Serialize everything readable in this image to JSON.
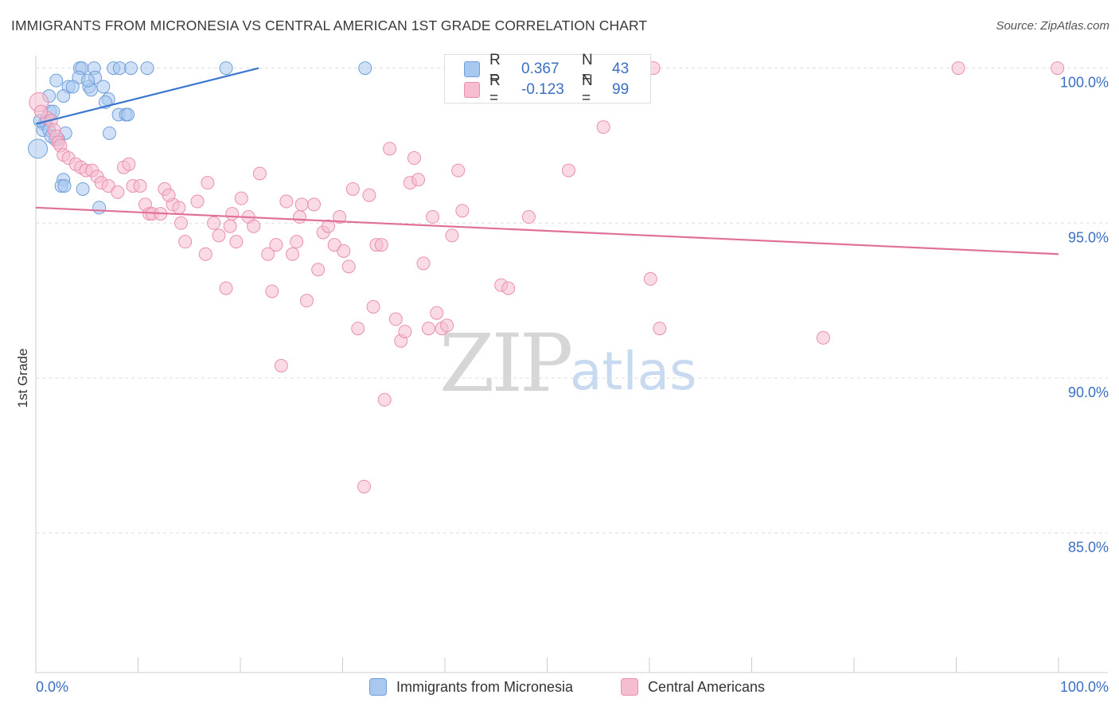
{
  "title": "IMMIGRANTS FROM MICRONESIA VS CENTRAL AMERICAN 1ST GRADE CORRELATION CHART",
  "source": "Source: ZipAtlas.com",
  "watermark": {
    "zip": "ZIP",
    "atlas": "atlas"
  },
  "colors": {
    "blue_fill": "#a9c8f0",
    "blue_stroke": "#6f9fd8",
    "blue_line": "#3a78d0",
    "pink_fill": "#f6bdd0",
    "pink_stroke": "#e98fb0",
    "pink_line": "#e0709a",
    "grid": "#dddddd",
    "tick_text": "#3a6fc4"
  },
  "stats": {
    "blue": {
      "r_label": "R =",
      "r_value": "0.367",
      "n_label": "N =",
      "n_value": "43"
    },
    "pink": {
      "r_label": "R =",
      "r_value": "-0.123",
      "n_label": "N =",
      "n_value": "99"
    }
  },
  "legend": {
    "series1": "Immigrants from Micronesia",
    "series2": "Central Americans"
  },
  "chart_data": {
    "type": "scatter",
    "title": "IMMIGRANTS FROM MICRONESIA VS CENTRAL AMERICAN 1ST GRADE CORRELATION CHART",
    "xlabel": "",
    "ylabel": "1st Grade",
    "xlim": [
      0,
      100
    ],
    "ylim": [
      80.5,
      100.4
    ],
    "x_tick_labels": [
      "0.0%",
      "100.0%"
    ],
    "y_ticks": [
      100,
      95,
      90,
      85
    ],
    "y_tick_labels": [
      "100.0%",
      "95.0%",
      "90.0%",
      "85.0%"
    ],
    "grid": "horizontal dashed",
    "legend_position": "bottom",
    "series": [
      {
        "name": "Immigrants from Micronesia",
        "color": "#6f9fd8",
        "trend": {
          "x": [
            0,
            21.8
          ],
          "y": [
            98.2,
            100.0
          ]
        },
        "points": [
          [
            4.3,
            100
          ],
          [
            4.5,
            100
          ],
          [
            5.7,
            100
          ],
          [
            7.6,
            100
          ],
          [
            8.2,
            100
          ],
          [
            9.3,
            100
          ],
          [
            10.9,
            100
          ],
          [
            18.6,
            100
          ],
          [
            32.2,
            100
          ],
          [
            2.0,
            99.6
          ],
          [
            4.2,
            99.7
          ],
          [
            5.8,
            99.7
          ],
          [
            3.2,
            99.4
          ],
          [
            3.6,
            99.4
          ],
          [
            5.2,
            99.4
          ],
          [
            5.4,
            99.3
          ],
          [
            6.6,
            99.4
          ],
          [
            1.3,
            99.1
          ],
          [
            2.7,
            99.1
          ],
          [
            7.1,
            99.0
          ],
          [
            6.8,
            98.9
          ],
          [
            1.4,
            98.6
          ],
          [
            1.7,
            98.6
          ],
          [
            8.1,
            98.5
          ],
          [
            8.8,
            98.5
          ],
          [
            9.0,
            98.5
          ],
          [
            0.8,
            98.2
          ],
          [
            1.0,
            98.2
          ],
          [
            0.7,
            98.0
          ],
          [
            1.3,
            98.0
          ],
          [
            2.9,
            97.9
          ],
          [
            7.2,
            97.9
          ],
          [
            1.9,
            97.7
          ],
          [
            2.2,
            97.7
          ],
          [
            0.2,
            97.4
          ],
          [
            2.7,
            96.4
          ],
          [
            2.5,
            96.2
          ],
          [
            2.8,
            96.2
          ],
          [
            4.6,
            96.1
          ],
          [
            6.2,
            95.5
          ],
          [
            0.4,
            98.3
          ],
          [
            1.5,
            97.8
          ],
          [
            5.1,
            99.6
          ]
        ]
      },
      {
        "name": "Central Americans",
        "color": "#e98fb0",
        "trend": {
          "x": [
            0,
            100
          ],
          "y": [
            95.5,
            94.0
          ]
        },
        "points": [
          [
            49.4,
            100
          ],
          [
            60.4,
            100
          ],
          [
            90.2,
            100
          ],
          [
            99.9,
            100
          ],
          [
            0.3,
            98.9
          ],
          [
            1.1,
            98.4
          ],
          [
            1.5,
            98.3
          ],
          [
            1.8,
            98.0
          ],
          [
            2.0,
            97.8
          ],
          [
            2.2,
            97.6
          ],
          [
            2.4,
            97.5
          ],
          [
            2.7,
            97.2
          ],
          [
            3.2,
            97.1
          ],
          [
            3.9,
            96.9
          ],
          [
            4.4,
            96.8
          ],
          [
            4.9,
            96.7
          ],
          [
            5.5,
            96.7
          ],
          [
            6.0,
            96.5
          ],
          [
            6.4,
            96.3
          ],
          [
            7.1,
            96.2
          ],
          [
            8.0,
            96.0
          ],
          [
            8.6,
            96.8
          ],
          [
            9.1,
            96.9
          ],
          [
            9.5,
            96.2
          ],
          [
            10.2,
            96.2
          ],
          [
            10.7,
            95.6
          ],
          [
            11.1,
            95.3
          ],
          [
            11.4,
            95.3
          ],
          [
            12.2,
            95.3
          ],
          [
            12.6,
            96.1
          ],
          [
            13.4,
            95.6
          ],
          [
            13.0,
            95.9
          ],
          [
            14.0,
            95.5
          ],
          [
            14.2,
            95.0
          ],
          [
            14.6,
            94.4
          ],
          [
            15.8,
            95.7
          ],
          [
            16.6,
            94.0
          ],
          [
            16.8,
            96.3
          ],
          [
            17.4,
            95.0
          ],
          [
            17.9,
            94.6
          ],
          [
            18.6,
            92.9
          ],
          [
            19.0,
            94.9
          ],
          [
            19.2,
            95.3
          ],
          [
            19.6,
            94.4
          ],
          [
            20.1,
            95.8
          ],
          [
            20.8,
            95.2
          ],
          [
            21.3,
            94.9
          ],
          [
            21.9,
            96.6
          ],
          [
            22.7,
            94.0
          ],
          [
            23.1,
            92.8
          ],
          [
            23.5,
            94.3
          ],
          [
            24.0,
            90.4
          ],
          [
            24.5,
            95.7
          ],
          [
            25.1,
            94.0
          ],
          [
            25.5,
            94.4
          ],
          [
            25.8,
            95.2
          ],
          [
            26.0,
            95.6
          ],
          [
            26.5,
            92.5
          ],
          [
            27.2,
            95.6
          ],
          [
            27.6,
            93.5
          ],
          [
            28.1,
            94.7
          ],
          [
            28.6,
            94.9
          ],
          [
            29.2,
            94.3
          ],
          [
            29.7,
            95.2
          ],
          [
            30.1,
            94.1
          ],
          [
            30.6,
            93.6
          ],
          [
            31.0,
            96.1
          ],
          [
            31.5,
            91.6
          ],
          [
            32.1,
            86.5
          ],
          [
            32.6,
            95.9
          ],
          [
            33.0,
            92.3
          ],
          [
            33.3,
            94.3
          ],
          [
            33.8,
            94.3
          ],
          [
            34.1,
            89.3
          ],
          [
            34.6,
            97.4
          ],
          [
            35.2,
            91.9
          ],
          [
            35.7,
            91.2
          ],
          [
            36.1,
            91.5
          ],
          [
            36.6,
            96.3
          ],
          [
            37.0,
            97.1
          ],
          [
            37.4,
            96.4
          ],
          [
            37.9,
            93.7
          ],
          [
            38.4,
            91.6
          ],
          [
            38.8,
            95.2
          ],
          [
            39.2,
            92.1
          ],
          [
            39.7,
            91.6
          ],
          [
            40.2,
            91.7
          ],
          [
            40.7,
            94.6
          ],
          [
            41.3,
            96.7
          ],
          [
            41.7,
            95.4
          ],
          [
            45.5,
            93.0
          ],
          [
            46.2,
            92.9
          ],
          [
            48.2,
            95.2
          ],
          [
            52.1,
            96.7
          ],
          [
            55.5,
            98.1
          ],
          [
            60.1,
            93.2
          ],
          [
            61.0,
            91.6
          ],
          [
            77.0,
            91.3
          ],
          [
            0.5,
            98.6
          ]
        ]
      }
    ]
  }
}
